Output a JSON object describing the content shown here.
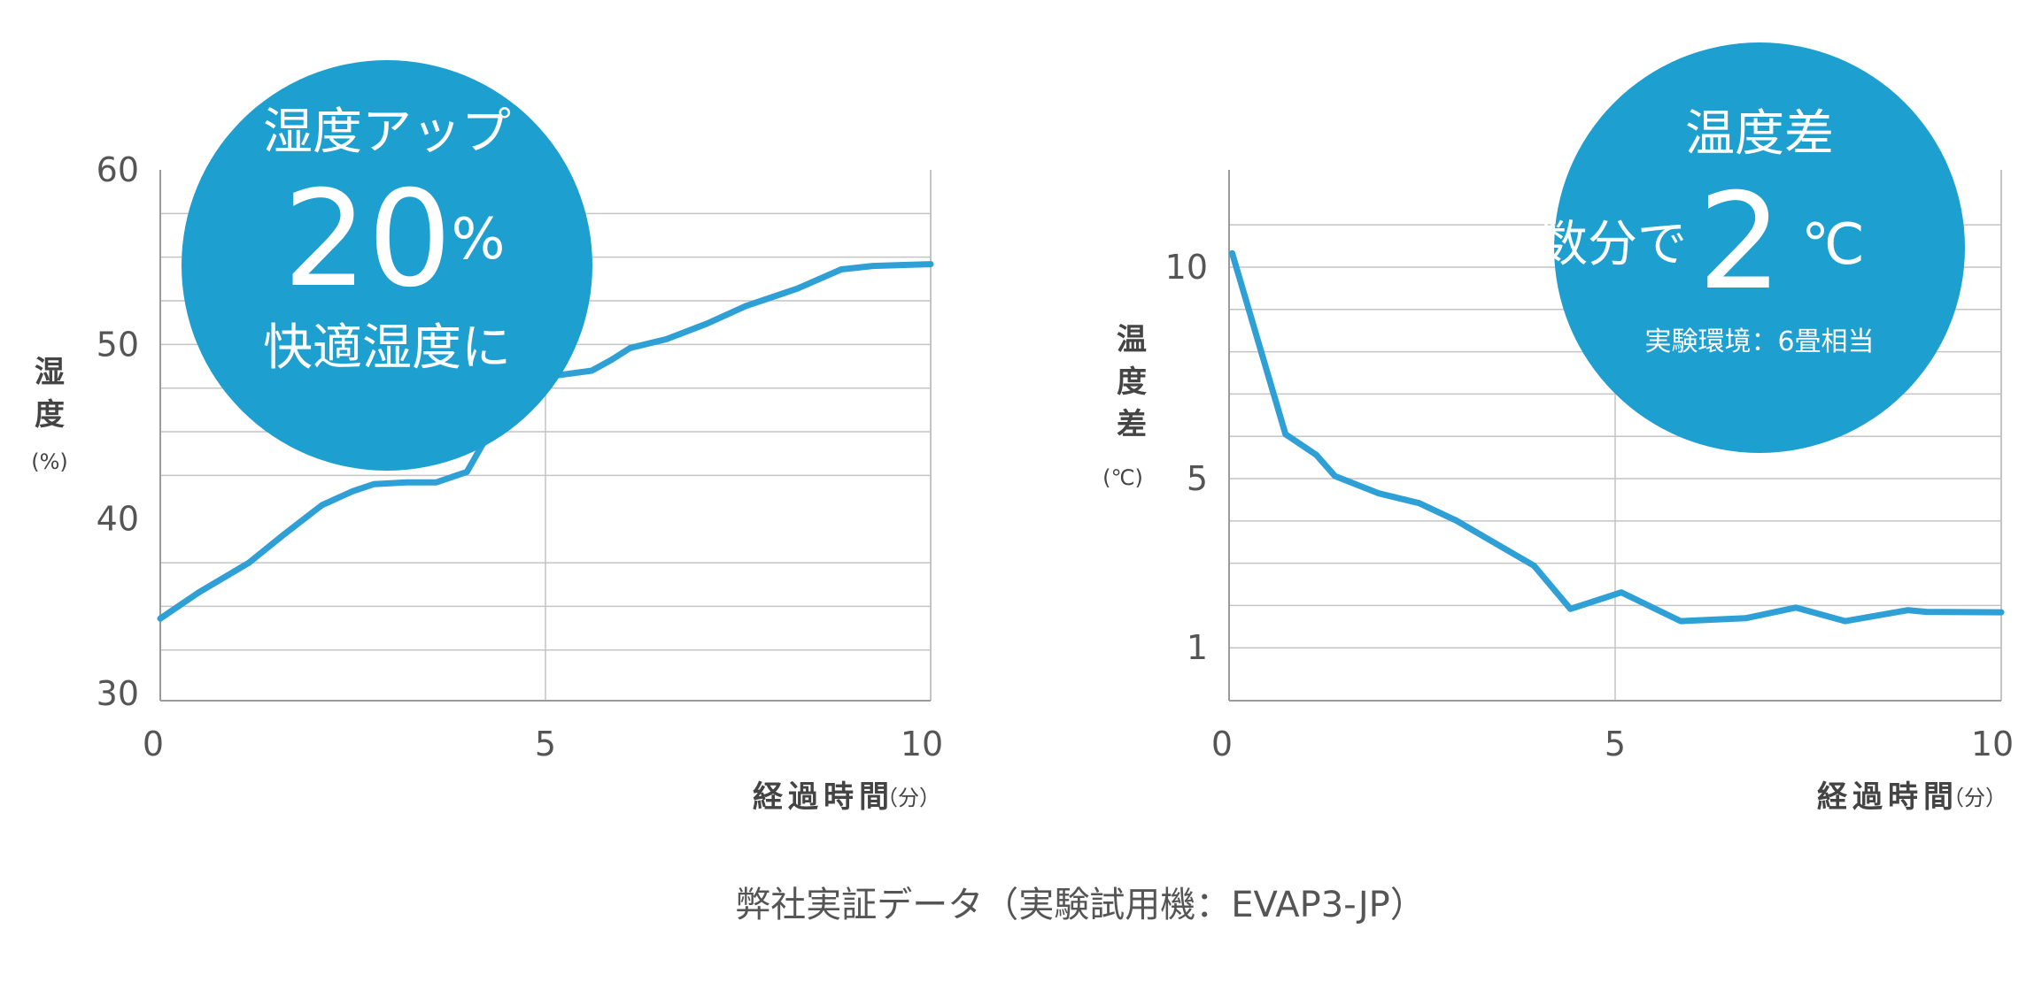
{
  "colors": {
    "line": "#2ea0d6",
    "circle": "#1d9fcf",
    "grid": "#c4c4c4",
    "axis": "#9a9a9a",
    "text": "#555555"
  },
  "chart_data": [
    {
      "type": "line",
      "title": "",
      "xlabel": "経過時間",
      "xlabel_unit": "（分）",
      "ylabel": "湿度",
      "ylabel_unit": "(%)",
      "xlim": [
        0,
        10
      ],
      "ylim": [
        29.6,
        60
      ],
      "xticks": [
        0,
        5,
        10
      ],
      "xtick_labels": [
        "0",
        "5",
        "10"
      ],
      "yticks": [
        30,
        40,
        50,
        60
      ],
      "ytick_labels": [
        "30",
        "40",
        "50",
        "60"
      ],
      "ygrid": [
        32.5,
        35,
        37.5,
        42.5,
        45,
        47.5,
        50,
        52.5,
        55,
        57.5
      ],
      "xgrid": [
        5
      ],
      "grid": true,
      "series": [
        {
          "name": "湿度",
          "x": [
            0,
            0.5,
            1.15,
            1.6,
            2.1,
            2.5,
            2.77,
            3.2,
            3.58,
            3.98,
            4.2,
            4.45,
            4.6,
            4.83,
            5.1,
            5.6,
            5.85,
            6.1,
            6.57,
            7.1,
            7.6,
            8.27,
            8.84,
            9.25,
            10
          ],
          "y": [
            34.3,
            35.8,
            37.5,
            39.1,
            40.8,
            41.6,
            42.0,
            42.1,
            42.1,
            42.7,
            44.4,
            46.5,
            46.8,
            46.9,
            48.2,
            48.5,
            49.1,
            49.8,
            50.3,
            51.2,
            52.2,
            53.2,
            54.3,
            54.5,
            54.6
          ]
        }
      ],
      "badge": {
        "line1": "湿度アップ",
        "value": "20",
        "value_unit": "%",
        "line3": "快適湿度に"
      }
    },
    {
      "type": "line",
      "title": "",
      "xlabel": "経過時間",
      "xlabel_unit": "（分）",
      "ylabel": "温度差",
      "ylabel_unit": "(℃)",
      "xlim": [
        0,
        10
      ],
      "ylim": [
        -0.25,
        12.3
      ],
      "xticks": [
        0,
        5,
        10
      ],
      "xtick_labels": [
        "0",
        "5",
        "10"
      ],
      "yticks": [
        1,
        5,
        10
      ],
      "ytick_labels": [
        "1",
        "5",
        "10"
      ],
      "ygrid": [
        1,
        2,
        3,
        4,
        5,
        6,
        7,
        8,
        9,
        10,
        11
      ],
      "xgrid": [
        5
      ],
      "grid": true,
      "series": [
        {
          "name": "温度差",
          "x": [
            0.04,
            0.73,
            1.13,
            1.37,
            1.94,
            2.46,
            2.94,
            3.95,
            4.42,
            5.08,
            5.85,
            6.69,
            7.34,
            7.98,
            8.79,
            9.03,
            10
          ],
          "y": [
            10.33,
            6.05,
            5.56,
            5.06,
            4.65,
            4.42,
            4.01,
            2.94,
            1.92,
            2.31,
            1.63,
            1.7,
            1.95,
            1.63,
            1.89,
            1.85,
            1.84
          ]
        }
      ],
      "badge": {
        "line1": "温度差",
        "prefix": "数分で",
        "value": "2",
        "value_unit": "℃",
        "note": "実験環境：6畳相当"
      }
    }
  ],
  "footer": "弊社実証データ（実験試用機：EVAP3-JP）"
}
